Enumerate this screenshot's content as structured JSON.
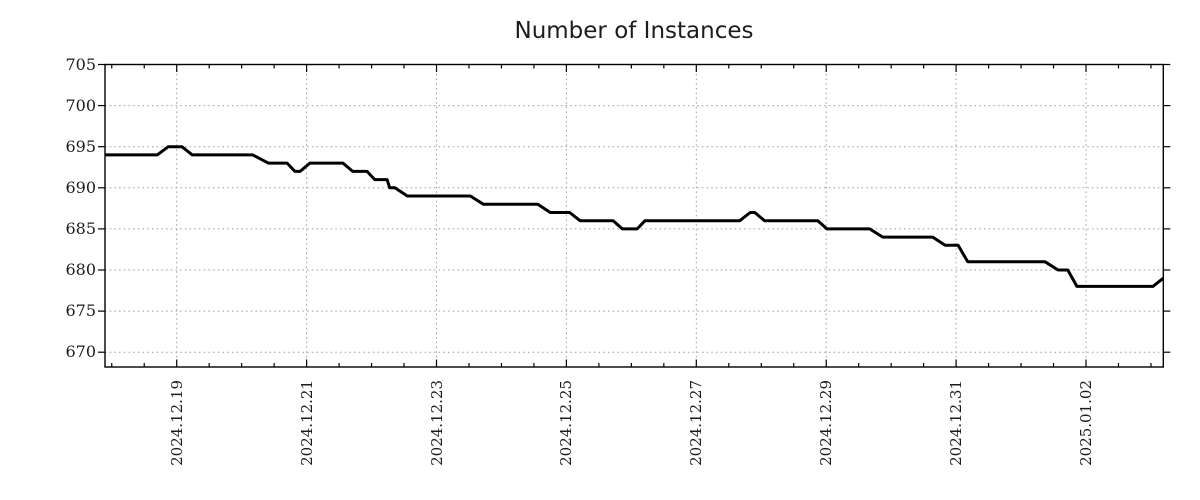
{
  "title": "Number of Instances",
  "chart_data": {
    "type": "line",
    "title": "Number of Instances",
    "series_name": "Number of Instances",
    "line_color": "#000000",
    "grid": "dotted",
    "grid_color": "#9b9b9b",
    "legend": "none",
    "x_unit": "days relative to 2024-12-19 00:00 (date axis)",
    "x_tick_days": [
      0,
      2,
      4,
      6,
      8,
      10,
      12,
      14
    ],
    "x_tick_labels": [
      "2024.12.19",
      "2024.12.21",
      "2024.12.23",
      "2024.12.25",
      "2024.12.27",
      "2024.12.29",
      "2024.12.31",
      "2025.01.02"
    ],
    "x_minor_tick_step_days": 0.5,
    "x_minor_tick_range_days": [
      -1.0,
      15.0
    ],
    "y_ticks": [
      670,
      675,
      680,
      685,
      690,
      695,
      700,
      705
    ],
    "xlim_days": [
      -1.104,
      15.19
    ],
    "ylim": [
      668.2,
      705
    ],
    "points": [
      [
        -1.1,
        694
      ],
      [
        -0.3,
        694
      ],
      [
        -0.13,
        695
      ],
      [
        0.08,
        695
      ],
      [
        0.24,
        694
      ],
      [
        1.17,
        694
      ],
      [
        1.41,
        693
      ],
      [
        1.7,
        693
      ],
      [
        1.82,
        692
      ],
      [
        1.9,
        692
      ],
      [
        2.05,
        693
      ],
      [
        2.56,
        693
      ],
      [
        2.71,
        692
      ],
      [
        2.93,
        692
      ],
      [
        3.05,
        691
      ],
      [
        3.24,
        691
      ],
      [
        3.28,
        690
      ],
      [
        3.36,
        690
      ],
      [
        3.55,
        689
      ],
      [
        4.52,
        689
      ],
      [
        4.72,
        688
      ],
      [
        5.56,
        688
      ],
      [
        5.75,
        687
      ],
      [
        6.05,
        687
      ],
      [
        6.21,
        686
      ],
      [
        6.72,
        686
      ],
      [
        6.86,
        685
      ],
      [
        7.09,
        685
      ],
      [
        7.21,
        686
      ],
      [
        8.67,
        686
      ],
      [
        8.83,
        687
      ],
      [
        8.9,
        687
      ],
      [
        9.05,
        686
      ],
      [
        9.87,
        686
      ],
      [
        10.01,
        685
      ],
      [
        10.67,
        685
      ],
      [
        10.87,
        684
      ],
      [
        11.64,
        684
      ],
      [
        11.83,
        683
      ],
      [
        12.03,
        683
      ],
      [
        12.18,
        681
      ],
      [
        13.37,
        681
      ],
      [
        13.57,
        680
      ],
      [
        13.72,
        680
      ],
      [
        13.86,
        678
      ],
      [
        15.03,
        678
      ],
      [
        15.19,
        679
      ]
    ]
  }
}
